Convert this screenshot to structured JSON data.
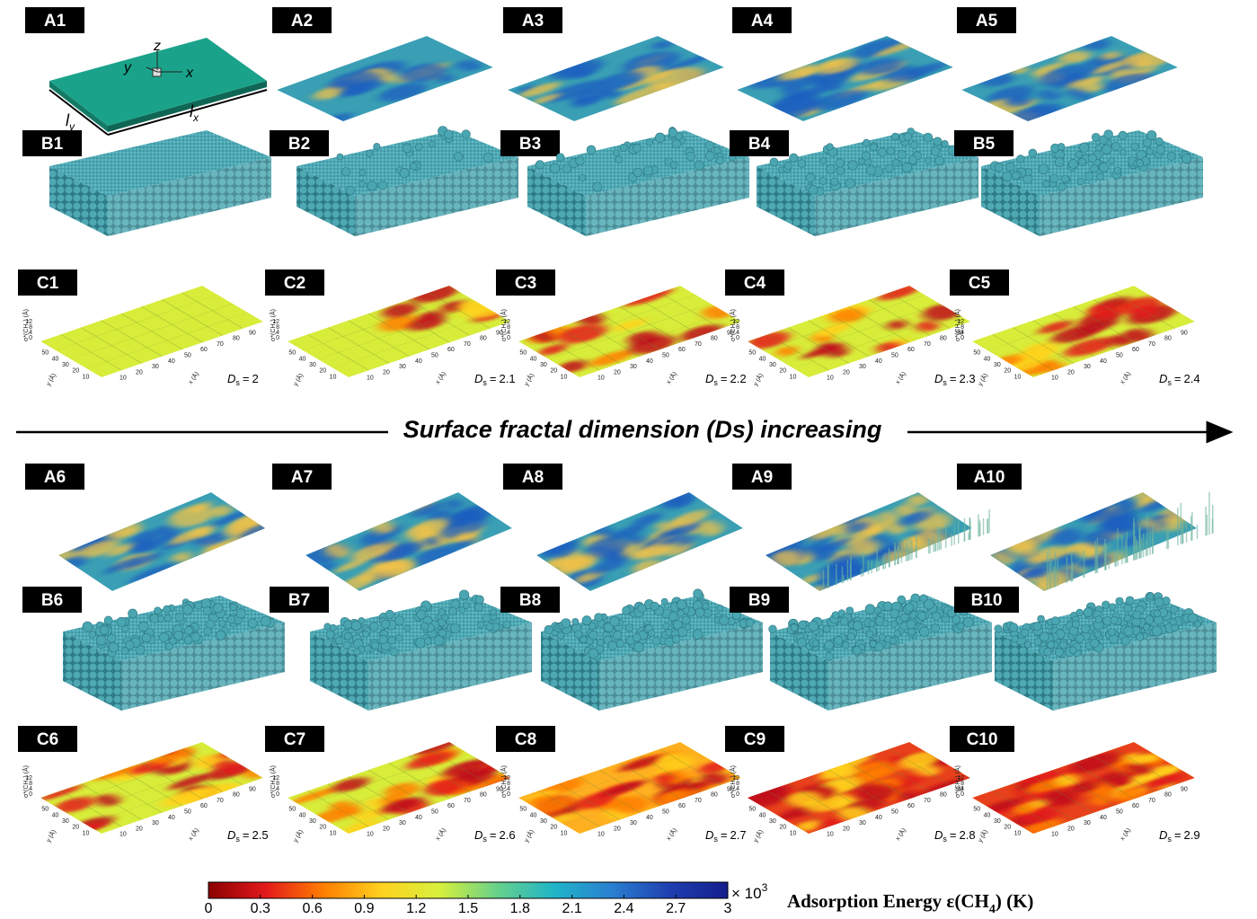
{
  "panels": [
    {
      "a": "A1",
      "b": "B1",
      "c": "C1",
      "ds_value": 2
    },
    {
      "a": "A2",
      "b": "B2",
      "c": "C2",
      "ds_value": 2.1
    },
    {
      "a": "A3",
      "b": "B3",
      "c": "C3",
      "ds_value": 2.2
    },
    {
      "a": "A4",
      "b": "B4",
      "c": "C4",
      "ds_value": 2.3
    },
    {
      "a": "A5",
      "b": "B5",
      "c": "C5",
      "ds_value": 2.4
    },
    {
      "a": "A6",
      "b": "B6",
      "c": "C6",
      "ds_value": 2.5
    },
    {
      "a": "A7",
      "b": "B7",
      "c": "C7",
      "ds_value": 2.6
    },
    {
      "a": "A8",
      "b": "B8",
      "c": "C8",
      "ds_value": 2.7
    },
    {
      "a": "A9",
      "b": "B9",
      "c": "C9",
      "ds_value": 2.8
    },
    {
      "a": "A10",
      "b": "B10",
      "c": "C10",
      "ds_value": 2.9
    }
  ],
  "ds_symbol": "D",
  "ds_subscript": "s",
  "ds_equals": "=",
  "a1_axes": {
    "z": "z",
    "y": "y",
    "x": "x",
    "ly": "l",
    "ly_sub": "y",
    "lx": "l",
    "lx_sub": "x"
  },
  "c_axes": {
    "x_label": "x (Å)",
    "y_label": "y (Å)",
    "z_label": "σ*(CH₄) (Å)",
    "x_ticks": [
      10,
      20,
      30,
      40,
      50,
      60,
      70,
      80,
      90
    ],
    "y_ticks": [
      10,
      20,
      30,
      40,
      50
    ],
    "z_ticks": [
      0,
      4,
      8,
      12
    ]
  },
  "arrow_text": "Surface fractal dimension (Ds) increasing",
  "colorbar": {
    "ticks": [
      0,
      0.3,
      0.6,
      0.9,
      1.2,
      1.5,
      1.8,
      2.1,
      2.4,
      2.7,
      3
    ],
    "lim": [
      0,
      3
    ],
    "multiplier": "× 10",
    "exponent": "3",
    "title": "Adsorption Energy ε(CH",
    "title_sub": "4",
    "title_end": ") (K)",
    "colormap": [
      "#8b0000",
      "#e31a1c",
      "#ff7f00",
      "#ffd21f",
      "#d7f03c",
      "#67d18a",
      "#1fb4c8",
      "#2a7fd0",
      "#1f3fb0",
      "#141d8c"
    ]
  }
}
